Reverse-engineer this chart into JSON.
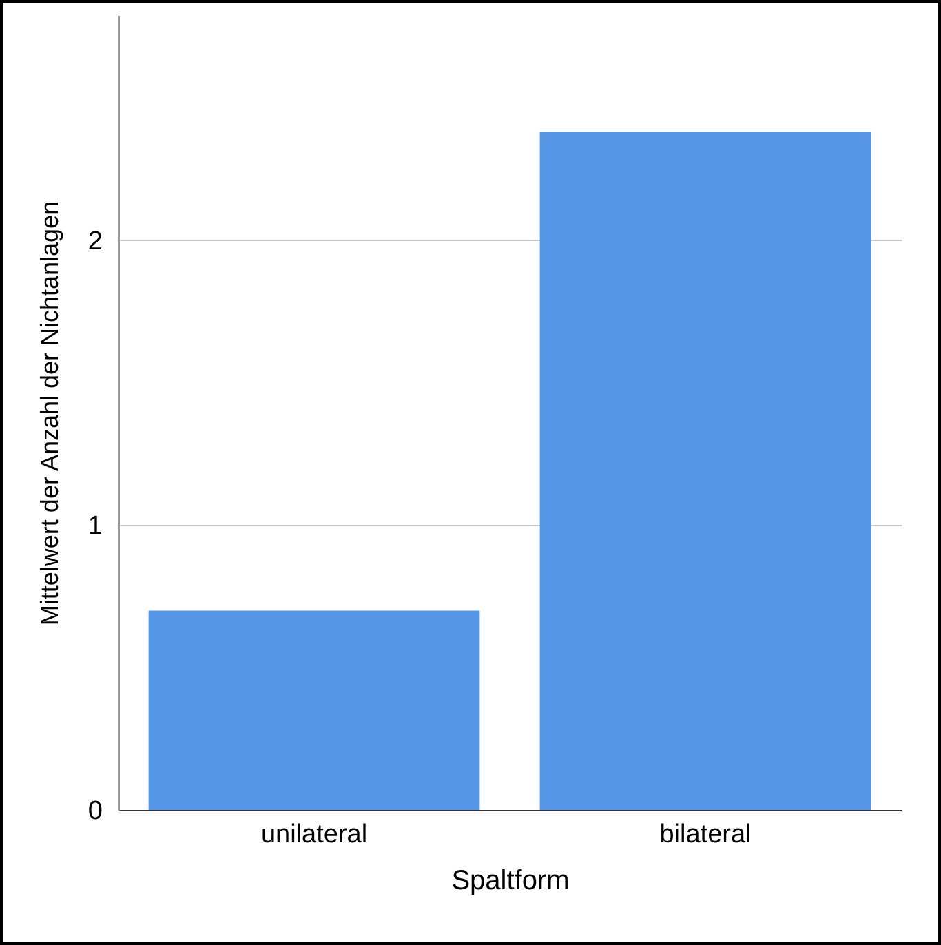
{
  "chart_data": {
    "type": "bar",
    "xlabel": "Spaltform",
    "ylabel": "Mittelwert der Anzahl der Nichtanlagen",
    "categories": [
      "unilateral",
      "bilateral"
    ],
    "values": [
      0.7,
      2.38
    ],
    "color": "#5596e6",
    "ylim": [
      0,
      2.79
    ],
    "yticks": [
      0,
      1,
      2
    ],
    "grid": "y"
  }
}
